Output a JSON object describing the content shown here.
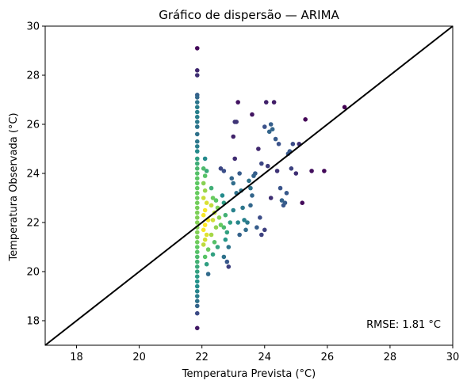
{
  "chart_data": {
    "type": "scatter",
    "title": "Gráfico de dispersão — ARIMA",
    "xlabel": "Temperatura Prevista (°C)",
    "ylabel": "Temperatura Observada (°C)",
    "xlim": [
      17,
      30
    ],
    "ylim": [
      17,
      30
    ],
    "xticks": [
      "18",
      "20",
      "22",
      "24",
      "26",
      "28",
      "30"
    ],
    "yticks": [
      "18",
      "20",
      "22",
      "24",
      "26",
      "28",
      "30"
    ],
    "grid": false,
    "reference_line": {
      "from": [
        17,
        17
      ],
      "to": [
        30,
        30
      ],
      "color": "#000000"
    },
    "annotation": "RMSE: 1.81 °C",
    "colormap": "viridis (color = point density)",
    "colors": {
      "low_density": "#440154",
      "mid_density": "#21918c",
      "high_density": "#fde725"
    },
    "points": [
      [
        21.85,
        29.1
      ],
      [
        21.85,
        28.2
      ],
      [
        21.85,
        28.0
      ],
      [
        21.85,
        27.2
      ],
      [
        21.85,
        27.1
      ],
      [
        21.85,
        26.9
      ],
      [
        21.85,
        26.7
      ],
      [
        21.85,
        26.5
      ],
      [
        21.85,
        26.3
      ],
      [
        21.85,
        26.1
      ],
      [
        21.85,
        25.9
      ],
      [
        21.85,
        25.6
      ],
      [
        21.85,
        25.3
      ],
      [
        21.85,
        25.1
      ],
      [
        21.85,
        24.9
      ],
      [
        21.85,
        24.6
      ],
      [
        21.85,
        24.4
      ],
      [
        21.85,
        24.2
      ],
      [
        21.85,
        24.0
      ],
      [
        21.85,
        23.8
      ],
      [
        21.85,
        23.6
      ],
      [
        21.85,
        23.4
      ],
      [
        21.85,
        23.2
      ],
      [
        21.85,
        23.0
      ],
      [
        21.85,
        22.8
      ],
      [
        21.85,
        22.6
      ],
      [
        21.85,
        22.4
      ],
      [
        21.85,
        22.2
      ],
      [
        21.85,
        22.0
      ],
      [
        21.85,
        21.8
      ],
      [
        21.85,
        21.6
      ],
      [
        21.85,
        21.4
      ],
      [
        21.85,
        21.2
      ],
      [
        21.85,
        21.0
      ],
      [
        21.85,
        20.8
      ],
      [
        21.85,
        20.6
      ],
      [
        21.85,
        20.4
      ],
      [
        21.85,
        20.2
      ],
      [
        21.85,
        20.0
      ],
      [
        21.85,
        19.8
      ],
      [
        21.85,
        19.6
      ],
      [
        21.85,
        19.4
      ],
      [
        21.85,
        19.2
      ],
      [
        21.85,
        19.0
      ],
      [
        21.85,
        18.8
      ],
      [
        21.85,
        18.6
      ],
      [
        21.85,
        18.3
      ],
      [
        21.85,
        17.7
      ],
      [
        22.05,
        24.2
      ],
      [
        22.1,
        23.9
      ],
      [
        22.05,
        23.6
      ],
      [
        22.1,
        23.3
      ],
      [
        22.05,
        23.0
      ],
      [
        22.15,
        22.8
      ],
      [
        22.1,
        22.5
      ],
      [
        22.05,
        22.3
      ],
      [
        22.2,
        22.1
      ],
      [
        22.1,
        21.9
      ],
      [
        22.05,
        21.7
      ],
      [
        22.15,
        21.5
      ],
      [
        22.1,
        21.3
      ],
      [
        22.05,
        21.1
      ],
      [
        22.2,
        20.9
      ],
      [
        22.1,
        20.6
      ],
      [
        22.15,
        20.3
      ],
      [
        22.2,
        19.9
      ],
      [
        22.1,
        24.6
      ],
      [
        22.15,
        24.1
      ],
      [
        22.3,
        23.4
      ],
      [
        22.35,
        23.0
      ],
      [
        22.3,
        22.7
      ],
      [
        22.4,
        22.4
      ],
      [
        22.35,
        22.1
      ],
      [
        22.45,
        21.8
      ],
      [
        22.3,
        21.5
      ],
      [
        22.4,
        21.2
      ],
      [
        22.5,
        21.0
      ],
      [
        22.35,
        20.7
      ],
      [
        22.45,
        22.9
      ],
      [
        22.5,
        22.6
      ],
      [
        22.55,
        22.2
      ],
      [
        22.6,
        21.9
      ],
      [
        22.6,
        24.2
      ],
      [
        22.7,
        24.1
      ],
      [
        22.65,
        23.1
      ],
      [
        22.7,
        22.8
      ],
      [
        22.75,
        22.3
      ],
      [
        22.7,
        21.8
      ],
      [
        22.8,
        21.6
      ],
      [
        22.75,
        21.3
      ],
      [
        22.85,
        21.0
      ],
      [
        22.7,
        20.6
      ],
      [
        22.8,
        20.4
      ],
      [
        22.85,
        20.2
      ],
      [
        22.9,
        22.0
      ],
      [
        22.95,
        23.8
      ],
      [
        23.0,
        23.6
      ],
      [
        23.05,
        24.6
      ],
      [
        23.1,
        23.2
      ],
      [
        23.0,
        22.5
      ],
      [
        23.15,
        22.0
      ],
      [
        23.2,
        21.5
      ],
      [
        23.05,
        26.1
      ],
      [
        23.1,
        26.1
      ],
      [
        23.0,
        25.5
      ],
      [
        23.15,
        26.9
      ],
      [
        23.2,
        24.0
      ],
      [
        23.25,
        23.3
      ],
      [
        23.3,
        22.6
      ],
      [
        23.35,
        22.1
      ],
      [
        23.4,
        21.7
      ],
      [
        23.45,
        22.0
      ],
      [
        23.5,
        23.7
      ],
      [
        23.55,
        23.4
      ],
      [
        23.6,
        23.1
      ],
      [
        23.55,
        22.7
      ],
      [
        23.6,
        26.4
      ],
      [
        23.65,
        23.9
      ],
      [
        23.7,
        24.0
      ],
      [
        23.75,
        21.8
      ],
      [
        23.8,
        25.0
      ],
      [
        23.9,
        24.4
      ],
      [
        24.0,
        25.9
      ],
      [
        24.05,
        26.9
      ],
      [
        24.1,
        24.3
      ],
      [
        24.15,
        25.7
      ],
      [
        24.2,
        26.0
      ],
      [
        24.25,
        25.8
      ],
      [
        24.3,
        26.9
      ],
      [
        24.35,
        25.4
      ],
      [
        24.4,
        24.1
      ],
      [
        24.45,
        25.2
      ],
      [
        24.5,
        23.4
      ],
      [
        24.55,
        22.9
      ],
      [
        24.6,
        22.7
      ],
      [
        24.65,
        22.8
      ],
      [
        24.7,
        23.2
      ],
      [
        24.75,
        24.8
      ],
      [
        24.8,
        24.9
      ],
      [
        24.85,
        24.2
      ],
      [
        24.9,
        25.2
      ],
      [
        25.0,
        24.0
      ],
      [
        25.1,
        25.2
      ],
      [
        25.2,
        22.8
      ],
      [
        25.3,
        26.2
      ],
      [
        25.5,
        24.1
      ],
      [
        25.9,
        24.1
      ],
      [
        26.55,
        26.7
      ],
      [
        24.0,
        21.7
      ],
      [
        23.9,
        21.5
      ],
      [
        24.2,
        23.0
      ],
      [
        23.85,
        22.2
      ]
    ]
  }
}
